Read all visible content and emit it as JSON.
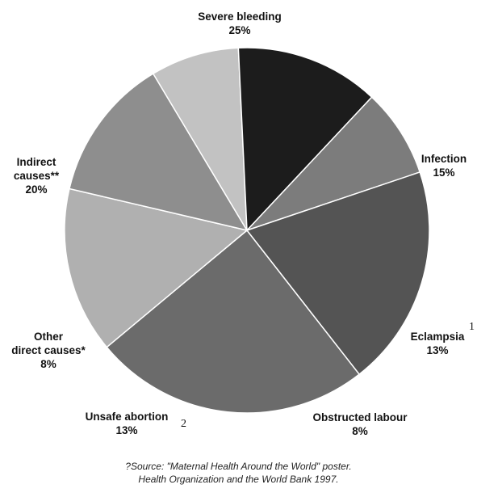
{
  "chart_data": {
    "type": "pie",
    "slices": [
      {
        "label": [
          "Severe bleeding"
        ],
        "value": 25,
        "value_label": "25%",
        "color": "#6b6b6b"
      },
      {
        "label": [
          "Infection"
        ],
        "value": 15,
        "value_label": "15%",
        "color": "#b0b0b0"
      },
      {
        "label": [
          "Eclampsia"
        ],
        "value": 13,
        "value_label": "13%",
        "color": "#8e8e8e",
        "note": "1"
      },
      {
        "label": [
          "Obstructed labour"
        ],
        "value": 8,
        "value_label": "8%",
        "color": "#c2c2c2"
      },
      {
        "label": [
          "Unsafe abortion"
        ],
        "value": 13,
        "value_label": "13%",
        "color": "#1c1c1c",
        "note": "2"
      },
      {
        "label": [
          "Other",
          "direct causes*"
        ],
        "value": 8,
        "value_label": "8%",
        "color": "#7c7c7c"
      },
      {
        "label": [
          "Indirect",
          "causes**"
        ],
        "value": 20,
        "value_label": "20%",
        "color": "#545454"
      }
    ]
  },
  "source": {
    "line1": "?Source: \"Maternal Health Around the World\" poster.",
    "line2": "Health Organization and the World Bank 1997."
  }
}
